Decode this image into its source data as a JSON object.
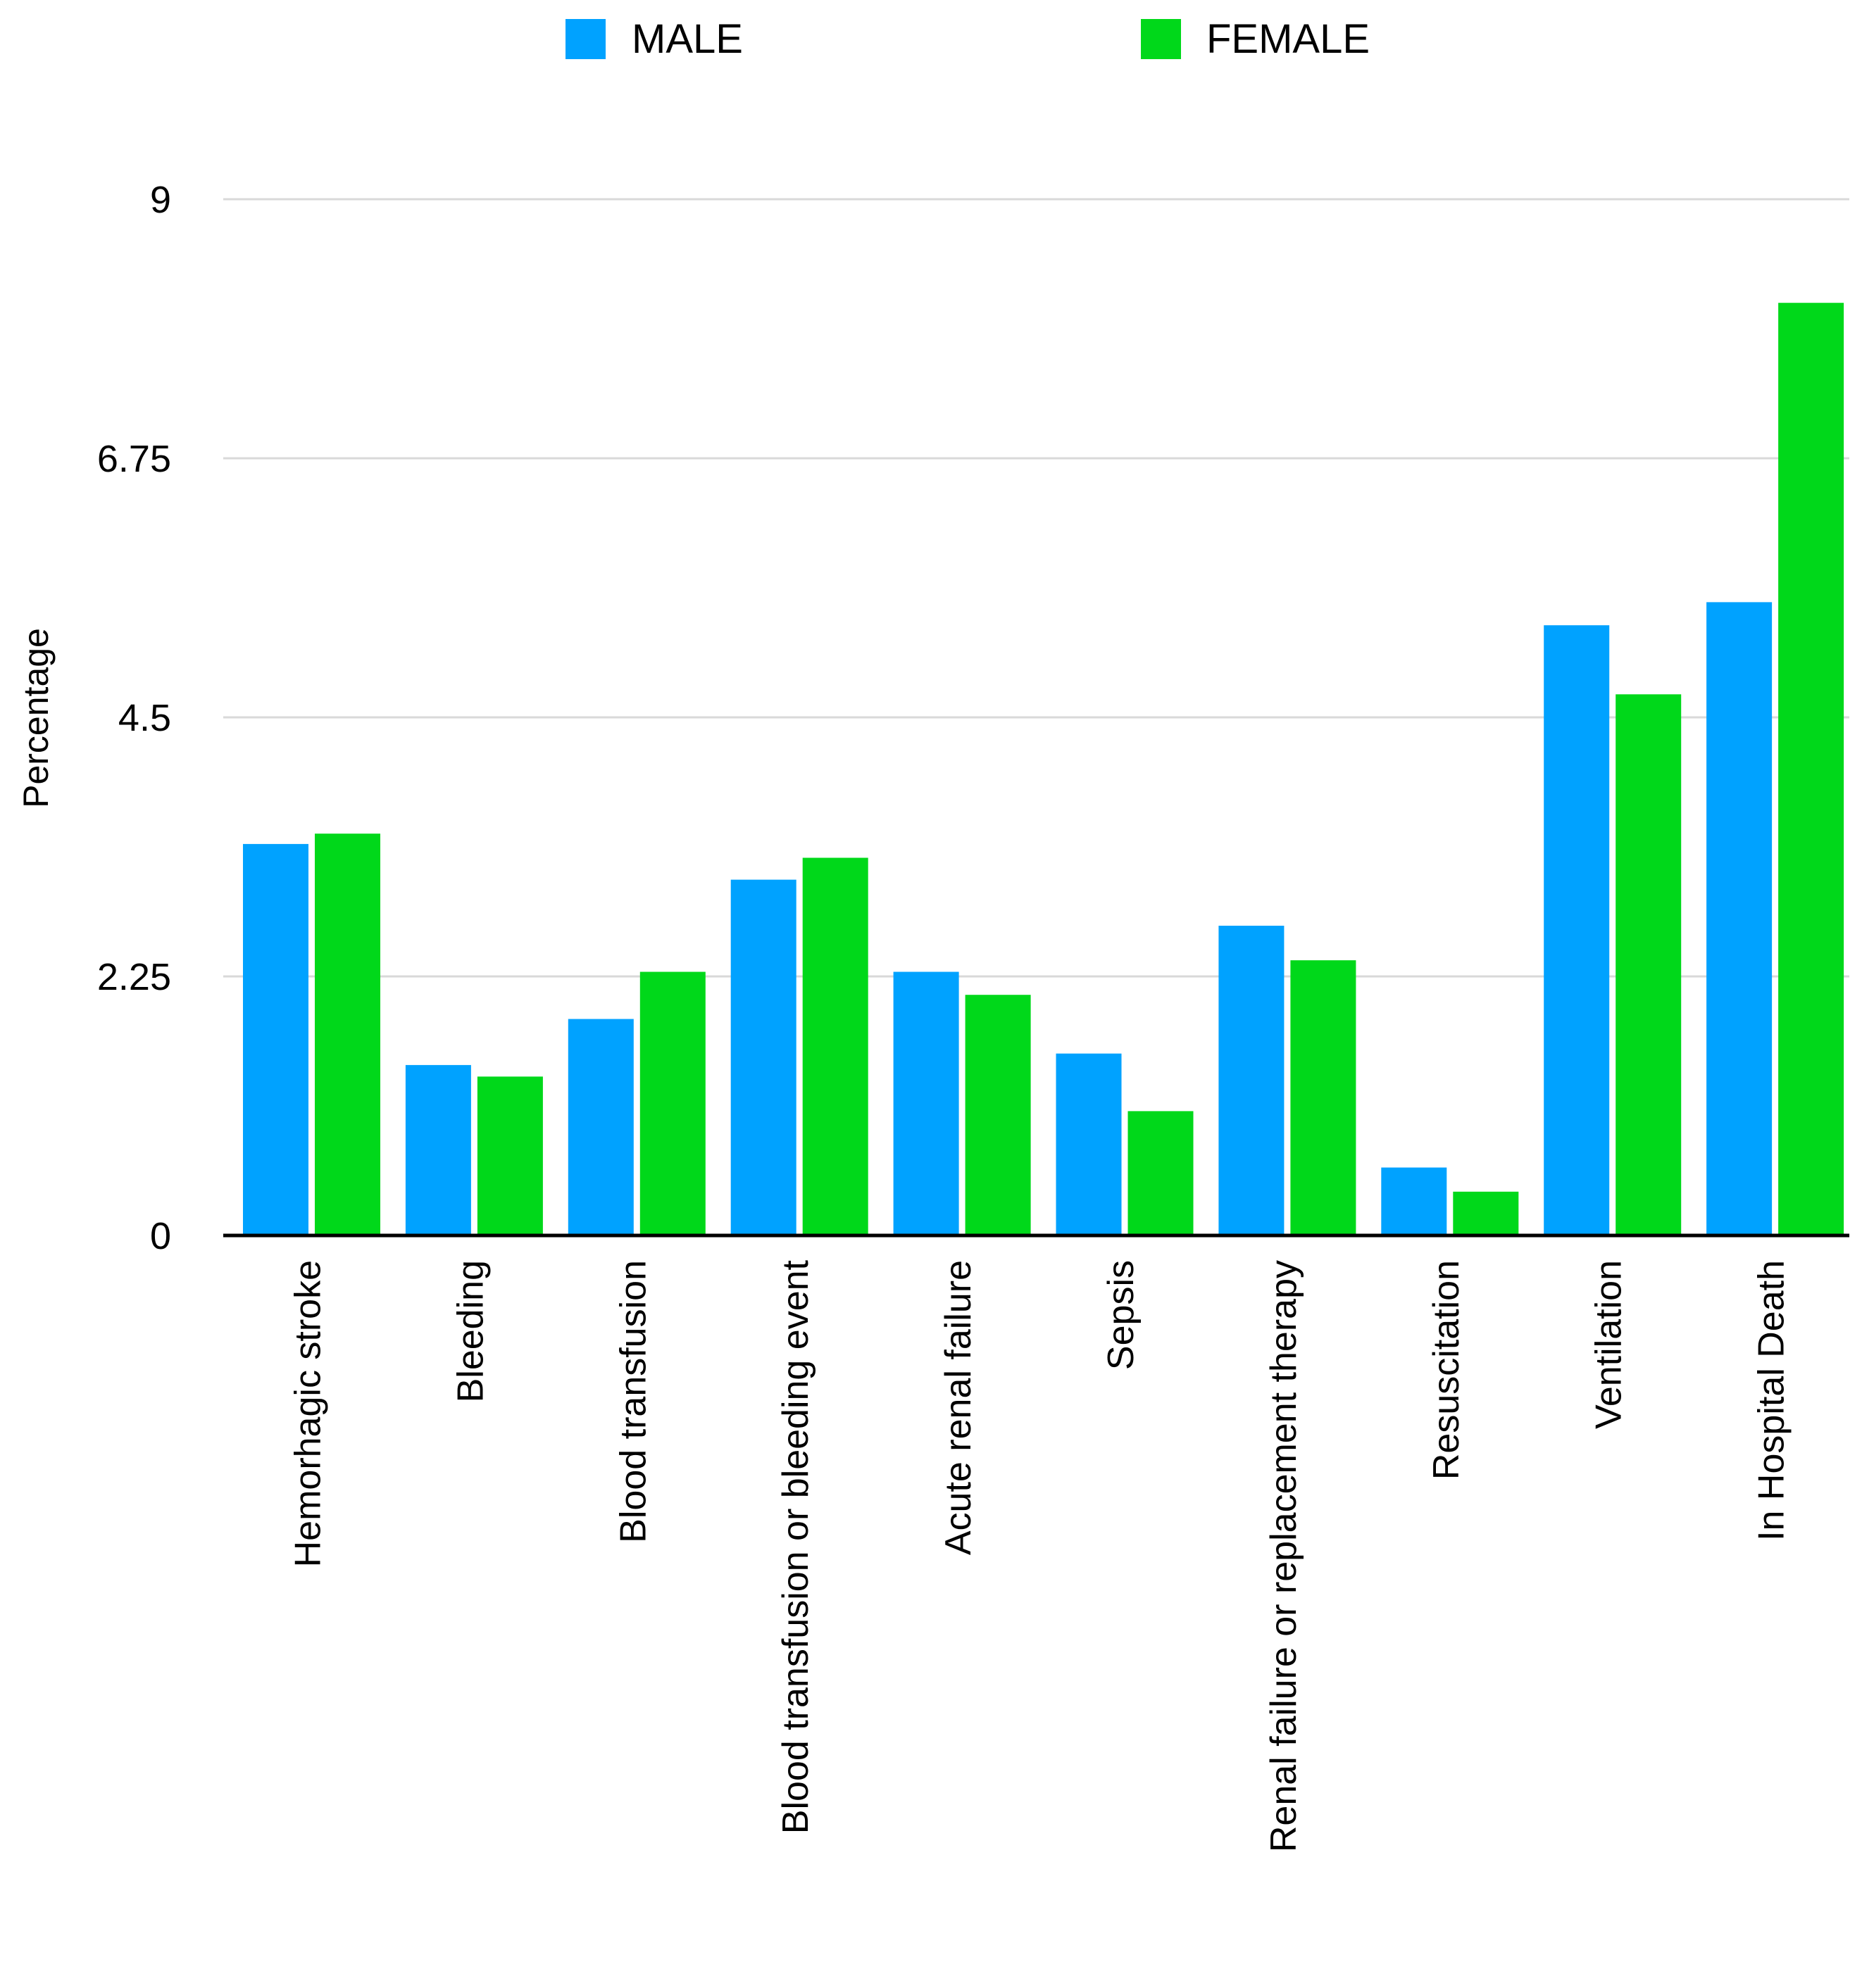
{
  "chart_data": {
    "type": "bar",
    "title": "",
    "xlabel": "",
    "ylabel": "Percentage",
    "ylim": [
      0,
      9
    ],
    "yticks": [
      "0",
      "2.25",
      "4.5",
      "6.75",
      "9"
    ],
    "grid": true,
    "legend_position": "top",
    "categories": [
      "Hemorhagic stroke",
      "Bleeding",
      "Blood transfusion",
      "Blood transfusion or bleeding event",
      "Acute renal failure",
      "Sepsis",
      "Renal failure or replacement therapy",
      "Resuscitation",
      "Ventilation",
      "In Hospital Death"
    ],
    "series": [
      {
        "name": "MALE",
        "color": "#00a2ff",
        "values": [
          3.4,
          1.48,
          1.88,
          3.09,
          2.29,
          1.58,
          2.69,
          0.59,
          5.3,
          5.5
        ]
      },
      {
        "name": "FEMALE",
        "color": "#00d81a",
        "values": [
          3.49,
          1.38,
          2.29,
          3.28,
          2.09,
          1.08,
          2.39,
          0.38,
          4.7,
          8.1
        ]
      }
    ]
  },
  "colors": {
    "grid": "#d9d9d9",
    "axis": "#000000",
    "background": "#ffffff"
  }
}
